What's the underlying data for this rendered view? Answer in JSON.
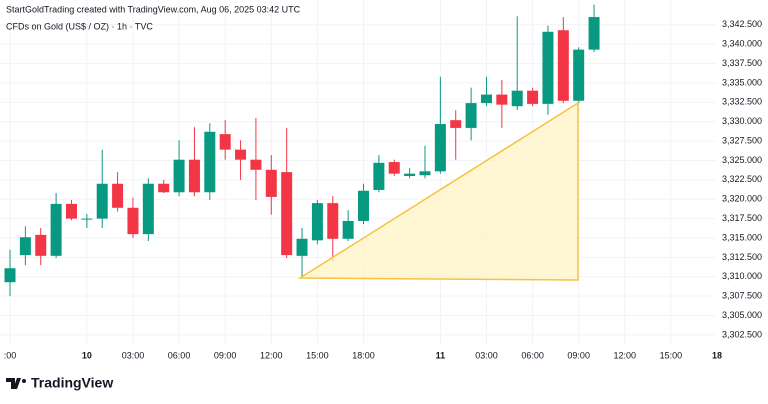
{
  "chart_data": {
    "type": "candlestick",
    "title": "StartGoldTrading created with TradingView.com, Aug 06, 2025 03:42 UTC",
    "subtitle": "CFDs on Gold (US$ / OZ) · 1h · TVC",
    "brand": "TradingView",
    "categories": [
      ":00",
      null,
      null,
      null,
      null,
      "10",
      null,
      null,
      "03:00",
      null,
      null,
      "06:00",
      null,
      null,
      "09:00",
      null,
      null,
      "12:00",
      null,
      null,
      "15:00",
      null,
      null,
      "18:00",
      null,
      null,
      null,
      null,
      "11",
      null,
      null,
      "03:00",
      null,
      null,
      "06:00",
      null,
      null,
      "09:00",
      null,
      null,
      "12:00",
      null,
      null,
      "15:00",
      null,
      null,
      "18"
    ],
    "open": [
      3309.3,
      3312.8,
      3315.4,
      3312.7,
      3319.4,
      3317.4,
      3317.5,
      3322.0,
      3318.9,
      3315.5,
      3322.0,
      3320.9,
      3325.1,
      3320.9,
      3328.4,
      3326.4,
      3325.1,
      3323.8,
      3323.5,
      3312.7,
      3314.7,
      3319.5,
      3314.9,
      3317.2,
      3321.2,
      3324.8,
      3323.0,
      3323.1,
      3323.6,
      3330.2,
      3329.2,
      3332.4,
      3333.5,
      3332.0,
      3334.0,
      3332.3,
      3341.8,
      3332.7,
      3339.3,
      null,
      null,
      null,
      null,
      null,
      null,
      null,
      null
    ],
    "high": [
      3313.5,
      3316.5,
      3316.3,
      3320.8,
      3319.9,
      3318.1,
      3326.4,
      3323.5,
      3320.2,
      3322.7,
      3322.5,
      3327.6,
      3329.3,
      3329.8,
      3330.2,
      3327.6,
      3330.5,
      3325.7,
      3329.2,
      3316.3,
      3319.9,
      3320.4,
      3318.6,
      3322.0,
      3325.7,
      3325.1,
      3324.0,
      3326.9,
      3335.8,
      3331.5,
      3334.4,
      3335.8,
      3335.4,
      3343.6,
      3334.4,
      3342.4,
      3343.5,
      3339.6,
      3345.1,
      null,
      null,
      null,
      null,
      null,
      null,
      null,
      null
    ],
    "low": [
      3307.5,
      3311.5,
      3311.5,
      3312.4,
      3317.3,
      3316.3,
      3316.3,
      3318.4,
      3315.0,
      3314.6,
      3320.8,
      3320.4,
      3320.4,
      3319.9,
      3325.1,
      3322.5,
      3319.9,
      3318.0,
      3312.4,
      3310.0,
      3314.2,
      3311.9,
      3314.6,
      3316.8,
      3320.9,
      3323.0,
      3322.7,
      3322.7,
      3323.3,
      3325.1,
      3327.6,
      3332.0,
      3329.2,
      3331.5,
      3332.0,
      3330.9,
      3332.4,
      3332.4,
      3339.0,
      null,
      null,
      null,
      null,
      null,
      null,
      null,
      null
    ],
    "close": [
      3311.1,
      3315.1,
      3312.7,
      3319.4,
      3317.5,
      3317.5,
      3322.0,
      3318.9,
      3315.5,
      3322.0,
      3320.9,
      3325.1,
      3320.9,
      3328.7,
      3326.4,
      3325.1,
      3323.8,
      3320.3,
      3312.8,
      3314.9,
      3319.5,
      3314.9,
      3317.2,
      3321.1,
      3324.7,
      3323.3,
      3323.3,
      3323.6,
      3329.7,
      3329.2,
      3332.4,
      3333.5,
      3332.2,
      3334.0,
      3332.3,
      3341.6,
      3332.7,
      3339.3,
      3343.5,
      null,
      null,
      null,
      null,
      null,
      null,
      null,
      null
    ],
    "up_color": "#089981",
    "down_color": "#f23645",
    "ylim": [
      3301.2,
      3345.7
    ],
    "yticks": [
      {
        "value": 3302.5,
        "label": "3,302.500"
      },
      {
        "value": 3305,
        "label": "3,305.000"
      },
      {
        "value": 3307.5,
        "label": "3,307.500"
      },
      {
        "value": 3310,
        "label": "3,310.000"
      },
      {
        "value": 3312.5,
        "label": "3,312.500"
      },
      {
        "value": 3315,
        "label": "3,315.000"
      },
      {
        "value": 3317.5,
        "label": "3,317.500"
      },
      {
        "value": 3320,
        "label": "3,320.000"
      },
      {
        "value": 3322.5,
        "label": "3,322.500"
      },
      {
        "value": 3325,
        "label": "3,325.000"
      },
      {
        "value": 3327.5,
        "label": "3,327.500"
      },
      {
        "value": 3330,
        "label": "3,330.000"
      },
      {
        "value": 3332.5,
        "label": "3,332.500"
      },
      {
        "value": 3335,
        "label": "3,335.000"
      },
      {
        "value": 3337.5,
        "label": "3,337.500"
      },
      {
        "value": 3340,
        "label": "3,340.000"
      },
      {
        "value": 3342.5,
        "label": "3,342.500"
      }
    ],
    "grid": true
  }
}
